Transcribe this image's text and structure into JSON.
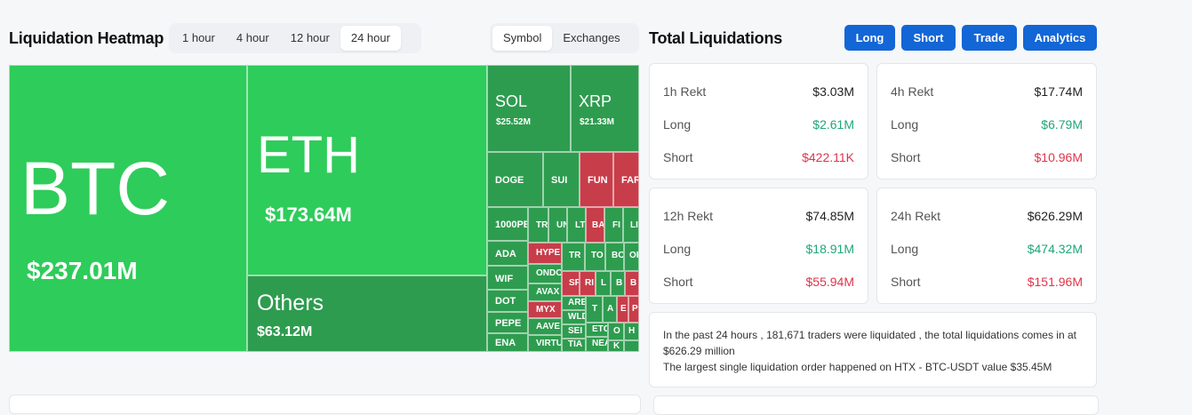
{
  "heatmap": {
    "title": "Liquidation Heatmap",
    "time_tabs": [
      "1 hour",
      "4 hour",
      "12 hour",
      "24 hour"
    ],
    "time_active": "24 hour",
    "group_tabs": [
      "Symbol",
      "Exchanges"
    ],
    "group_active": "Symbol",
    "tiles": {
      "btc": {
        "symbol": "BTC",
        "value": "$237.01M"
      },
      "eth": {
        "symbol": "ETH",
        "value": "$173.64M"
      },
      "others": {
        "symbol": "Others",
        "value": "$63.12M"
      },
      "sol": {
        "symbol": "SOL",
        "value": "$25.52M"
      },
      "xrp": {
        "symbol": "XRP",
        "value": "$21.33M"
      },
      "doge": "DOGE",
      "sui": "SUI",
      "fun": "FUN",
      "far": "FAR",
      "k1000pe": "1000PE",
      "tr1": "TR",
      "un": "UN",
      "lt": "LT",
      "ba": "BA",
      "fi": "FI",
      "li": "LI",
      "ada": "ADA",
      "hype": "HYPE",
      "tr2": "TR",
      "to": "TO",
      "bo": "BO",
      "op": "OP",
      "wif": "WIF",
      "ond": "ONDO",
      "sp": "SP",
      "ri": "RI",
      "l": "L",
      "b1": "B",
      "b2": "B",
      "dot": "DOT",
      "avax": "AVAX",
      "are": "ARE",
      "t": "T",
      "a": "A",
      "e": "E",
      "p": "P",
      "pepe": "PEPE",
      "myx": "MYX",
      "wld": "WLD",
      "etc": "ETC",
      "near": "NEA",
      "o": "O",
      "h": "H",
      "ena": "ENA",
      "aave": "AAVE",
      "sei": "SEI",
      "pop": "POP",
      "k": "K",
      "virtu": "VIRTU",
      "tia": "TIA"
    }
  },
  "totals": {
    "title": "Total Liquidations",
    "buttons": [
      "Long",
      "Short",
      "Trade",
      "Analytics"
    ],
    "cards": [
      {
        "label": "1h Rekt",
        "total": "$3.03M",
        "long_label": "Long",
        "long": "$2.61M",
        "short_label": "Short",
        "short": "$422.11K"
      },
      {
        "label": "4h Rekt",
        "total": "$17.74M",
        "long_label": "Long",
        "long": "$6.79M",
        "short_label": "Short",
        "short": "$10.96M"
      },
      {
        "label": "12h Rekt",
        "total": "$74.85M",
        "long_label": "Long",
        "long": "$18.91M",
        "short_label": "Short",
        "short": "$55.94M"
      },
      {
        "label": "24h Rekt",
        "total": "$626.29M",
        "long_label": "Long",
        "long": "$474.32M",
        "short_label": "Short",
        "short": "$151.96M"
      }
    ],
    "summary_line1": "In the past 24 hours , 181,671 traders were liquidated , the total liquidations comes in at $626.29 million",
    "summary_line2": "The largest single liquidation order happened on HTX - BTC-USDT value $35.45M"
  },
  "colors": {
    "accent": "#1366d6",
    "long": "#1fa67a",
    "short": "#e0344b",
    "tile_green": "#2ecc5a",
    "tile_dark_green": "#2e9c4f",
    "tile_red": "#c83d4a"
  }
}
